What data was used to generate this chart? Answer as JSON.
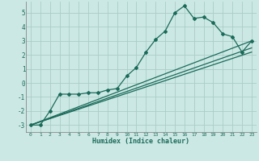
{
  "xlabel": "Humidex (Indice chaleur)",
  "ylabel": "",
  "bg_color": "#cce8e4",
  "grid_color": "#aaccc8",
  "line_color": "#1a6b5a",
  "xlim": [
    -0.5,
    23.5
  ],
  "ylim": [
    -3.5,
    5.8
  ],
  "xticks": [
    0,
    1,
    2,
    3,
    4,
    5,
    6,
    7,
    8,
    9,
    10,
    11,
    12,
    13,
    14,
    15,
    16,
    17,
    18,
    19,
    20,
    21,
    22,
    23
  ],
  "yticks": [
    -3,
    -2,
    -1,
    0,
    1,
    2,
    3,
    4,
    5
  ],
  "curve1_x": [
    0,
    1,
    2,
    3,
    4,
    5,
    6,
    7,
    8,
    9,
    10,
    11,
    12,
    13,
    14,
    15,
    16,
    17,
    18,
    19,
    20,
    21,
    22,
    23
  ],
  "curve1_y": [
    -3.0,
    -3.0,
    -2.0,
    -0.8,
    -0.8,
    -0.8,
    -0.7,
    -0.7,
    -0.5,
    -0.4,
    0.5,
    1.1,
    2.2,
    3.1,
    3.7,
    5.0,
    5.5,
    4.6,
    4.7,
    4.3,
    3.5,
    3.3,
    2.2,
    3.0
  ],
  "line2_x": [
    0,
    23
  ],
  "line2_y": [
    -3.0,
    3.0
  ],
  "line3_x": [
    0,
    23
  ],
  "line3_y": [
    -3.0,
    2.5
  ],
  "line4_x": [
    0,
    23
  ],
  "line4_y": [
    -3.0,
    2.2
  ]
}
